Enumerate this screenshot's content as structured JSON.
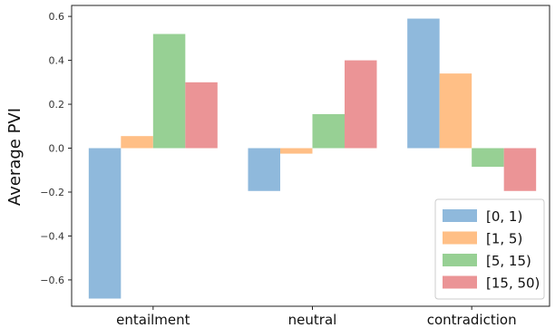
{
  "chart_data": {
    "type": "bar",
    "title": "",
    "xlabel": "",
    "ylabel": "Average PVI",
    "categories": [
      "entailment",
      "neutral",
      "contradiction"
    ],
    "series": [
      {
        "name": "[0, 1)",
        "color": "#8fb9dc",
        "values": [
          -0.685,
          -0.195,
          0.59
        ]
      },
      {
        "name": "[1, 5)",
        "color": "#ffbf86",
        "values": [
          0.055,
          -0.025,
          0.34
        ]
      },
      {
        "name": "[5, 15)",
        "color": "#97d094",
        "values": [
          0.52,
          0.155,
          -0.085
        ]
      },
      {
        "name": "[15, 50)",
        "color": "#eb9496",
        "values": [
          0.3,
          0.4,
          -0.195
        ]
      }
    ],
    "ylim": [
      -0.72,
      0.65
    ],
    "yticks": [
      -0.6,
      -0.4,
      -0.2,
      0.0,
      0.2,
      0.4,
      0.6
    ],
    "ytick_labels": [
      "−0.6",
      "−0.4",
      "−0.2",
      "0.0",
      "0.2",
      "0.4",
      "0.6"
    ],
    "legend_position": "lower-right",
    "grid": false
  }
}
